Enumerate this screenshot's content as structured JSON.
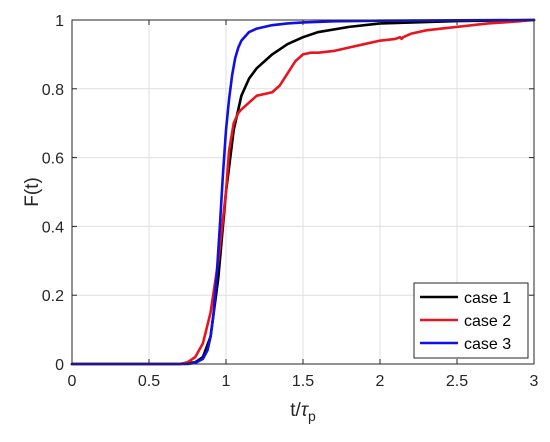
{
  "chart_data": {
    "type": "line",
    "xlabel": "t/τp",
    "xlabel_main": "t/",
    "xlabel_greek": "τ",
    "xlabel_sub": "p",
    "ylabel": "F(t)",
    "xlim": [
      0,
      3
    ],
    "ylim": [
      0,
      1
    ],
    "grid": true,
    "legend_position": "bottom-right",
    "x_ticks": [
      0,
      0.5,
      1,
      1.5,
      2,
      2.5,
      3
    ],
    "x_tick_labels": [
      "0",
      "0.5",
      "1",
      "1.5",
      "2",
      "2.5",
      "3"
    ],
    "y_ticks": [
      0,
      0.2,
      0.4,
      0.6,
      0.8,
      1
    ],
    "y_tick_labels": [
      "0",
      "0.2",
      "0.4",
      "0.6",
      "0.8",
      "1"
    ],
    "series": [
      {
        "name": "case 1",
        "color": "#000000",
        "x": [
          0,
          0.7,
          0.8,
          0.85,
          0.9,
          0.95,
          1.0,
          1.05,
          1.1,
          1.15,
          1.2,
          1.3,
          1.4,
          1.5,
          1.6,
          1.8,
          2.0,
          2.5,
          3.0
        ],
        "y": [
          0,
          0,
          0.005,
          0.02,
          0.08,
          0.25,
          0.5,
          0.68,
          0.78,
          0.83,
          0.86,
          0.9,
          0.93,
          0.95,
          0.965,
          0.98,
          0.99,
          0.997,
          1.0
        ]
      },
      {
        "name": "case 2",
        "color": "#e8141e",
        "x": [
          0,
          0.7,
          0.75,
          0.8,
          0.85,
          0.9,
          0.95,
          1.0,
          1.02,
          1.05,
          1.08,
          1.1,
          1.15,
          1.2,
          1.25,
          1.3,
          1.35,
          1.4,
          1.45,
          1.5,
          1.55,
          1.6,
          1.7,
          1.8,
          1.9,
          2.0,
          2.1,
          2.13,
          2.14,
          2.15,
          2.2,
          2.3,
          2.4,
          2.5,
          2.6,
          2.7,
          2.8,
          2.9,
          3.0
        ],
        "y": [
          0,
          0,
          0.005,
          0.02,
          0.06,
          0.15,
          0.3,
          0.5,
          0.62,
          0.7,
          0.73,
          0.74,
          0.76,
          0.78,
          0.785,
          0.79,
          0.81,
          0.845,
          0.88,
          0.9,
          0.905,
          0.905,
          0.91,
          0.92,
          0.93,
          0.94,
          0.945,
          0.95,
          0.945,
          0.95,
          0.96,
          0.97,
          0.975,
          0.98,
          0.985,
          0.99,
          0.993,
          0.996,
          1.0
        ]
      },
      {
        "name": "case 3",
        "color": "#1010e6",
        "x": [
          0,
          0.75,
          0.8,
          0.85,
          0.88,
          0.9,
          0.92,
          0.94,
          0.96,
          0.98,
          1.0,
          1.02,
          1.04,
          1.06,
          1.08,
          1.1,
          1.15,
          1.2,
          1.3,
          1.4,
          1.5,
          1.7,
          2.0,
          2.5,
          3.0
        ],
        "y": [
          0,
          0,
          0.003,
          0.015,
          0.04,
          0.08,
          0.15,
          0.26,
          0.4,
          0.55,
          0.68,
          0.77,
          0.84,
          0.89,
          0.92,
          0.94,
          0.965,
          0.975,
          0.985,
          0.99,
          0.993,
          0.996,
          0.998,
          0.999,
          1.0
        ]
      }
    ]
  }
}
